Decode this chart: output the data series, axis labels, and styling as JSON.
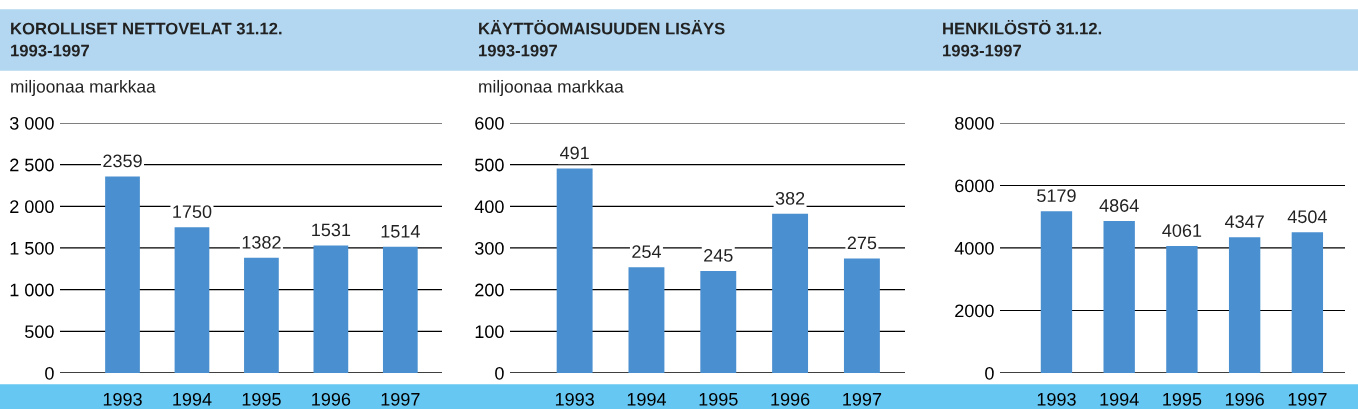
{
  "chart_data": [
    {
      "type": "bar",
      "title": "KOROLLISET NETTOVELAT 31.12.",
      "subtitle": "1993-1997",
      "ylabel": "miljoonaa markkaa",
      "categories": [
        "1993",
        "1994",
        "1995",
        "1996",
        "1997"
      ],
      "values": [
        2359,
        1750,
        1382,
        1531,
        1514
      ],
      "color": "#4a8fcf",
      "ylim": [
        0,
        3000
      ],
      "yticks": [
        0,
        500,
        {
          "value": 1000,
          "label": "1 000"
        },
        {
          "value": 1500,
          "label": "1 500"
        },
        {
          "value": 2000,
          "label": "2 000"
        },
        {
          "value": 2500,
          "label": "2 500"
        },
        {
          "value": 3000,
          "label": "3 000"
        }
      ],
      "grid": "y",
      "data_labels": true
    },
    {
      "type": "bar",
      "title": "KÄYTTÖOMAISUUDEN LISÄYS",
      "subtitle": "1993-1997",
      "ylabel": "miljoonaa markkaa",
      "categories": [
        "1993",
        "1994",
        "1995",
        "1996",
        "1997"
      ],
      "values": [
        491,
        254,
        245,
        382,
        275
      ],
      "color": "#4a8fcf",
      "ylim": [
        0,
        600
      ],
      "yticks": [
        0,
        100,
        200,
        300,
        400,
        500,
        600
      ],
      "grid": "y",
      "data_labels": true
    },
    {
      "type": "bar",
      "title": "HENKILÖSTÖ 31.12.",
      "subtitle": "1993-1997",
      "categories": [
        "1993",
        "1994",
        "1995",
        "1996",
        "1997"
      ],
      "values": [
        5179,
        4864,
        4061,
        4347,
        4504
      ],
      "color": "#4a8fcf",
      "ylim": [
        0,
        8000
      ],
      "yticks": [
        0,
        2000,
        4000,
        6000,
        8000
      ],
      "grid": "y",
      "data_labels": true
    }
  ]
}
